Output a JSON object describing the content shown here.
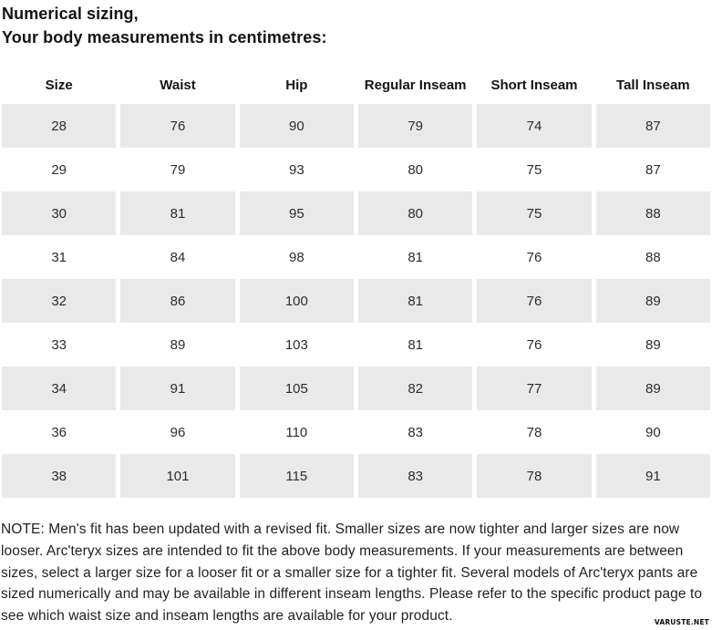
{
  "page": {
    "title_line1": "Numerical sizing,",
    "title_line2": "Your body measurements in centimetres:"
  },
  "table": {
    "columns": [
      "Size",
      "Waist",
      "Hip",
      "Regular Inseam",
      "Short Inseam",
      "Tall Inseam"
    ],
    "rows": [
      [
        "28",
        "76",
        "90",
        "79",
        "74",
        "87"
      ],
      [
        "29",
        "79",
        "93",
        "80",
        "75",
        "87"
      ],
      [
        "30",
        "81",
        "95",
        "80",
        "75",
        "88"
      ],
      [
        "31",
        "84",
        "98",
        "81",
        "76",
        "88"
      ],
      [
        "32",
        "86",
        "100",
        "81",
        "76",
        "89"
      ],
      [
        "33",
        "89",
        "103",
        "81",
        "76",
        "89"
      ],
      [
        "34",
        "91",
        "105",
        "82",
        "77",
        "89"
      ],
      [
        "36",
        "96",
        "110",
        "83",
        "78",
        "90"
      ],
      [
        "38",
        "101",
        "115",
        "83",
        "78",
        "91"
      ]
    ]
  },
  "note": "NOTE: Men's fit has been updated with a revised fit. Smaller sizes are now tighter and larger sizes are now looser. Arc'teryx sizes are intended to fit the above body measurements. If your measurements are between sizes, select a larger size for a looser fit or a smaller size for a tighter fit. Several models of Arc'teryx pants are sized numerically and may be available in different inseam lengths. Please refer to the specific product page to see which waist size and inseam lengths are available for your product.",
  "watermark": "VARUSTE.NET",
  "colors": {
    "row_shade": "#e9e9e9",
    "title_text": "#141414",
    "body_text": "#2d2d2d"
  }
}
